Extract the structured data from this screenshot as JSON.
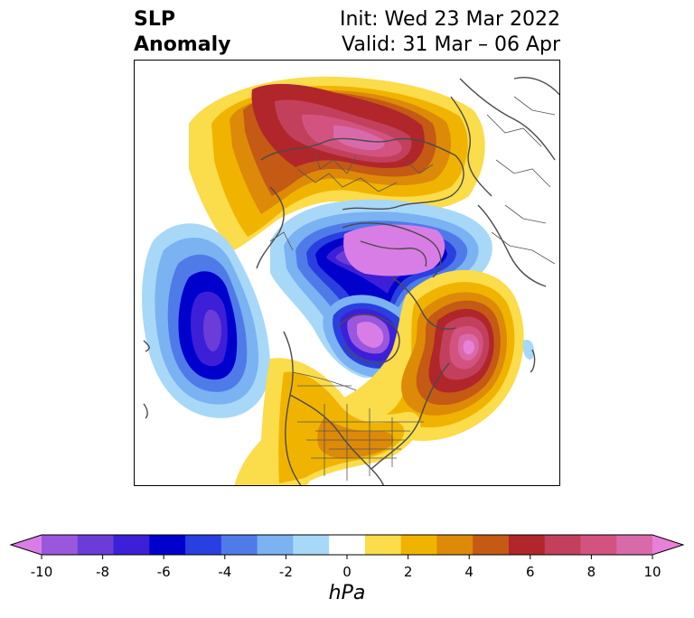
{
  "title": {
    "left_line1": "SLP",
    "left_line2": "Anomaly",
    "right_line1": "Init: Wed 23 Mar 2022",
    "right_line2": "Valid: 31 Mar – 06 Apr"
  },
  "colorbar": {
    "units": "hPa",
    "tick_labels": [
      "-10",
      "-8",
      "-6",
      "-4",
      "-2",
      "0",
      "2",
      "4",
      "6",
      "8",
      "10"
    ],
    "extend": "both",
    "colors": [
      "#d97de6",
      "#9a57dd",
      "#6b3cd8",
      "#3d1fd7",
      "#0000cc",
      "#2a3fdf",
      "#4f7be9",
      "#7ab2f2",
      "#a8d8f8",
      "#ffffff",
      "#fbdc4a",
      "#f0b400",
      "#dd8a08",
      "#c45a14",
      "#b0262a",
      "#c2405c",
      "#d35380",
      "#d96aaa",
      "#e780d8"
    ]
  }
}
